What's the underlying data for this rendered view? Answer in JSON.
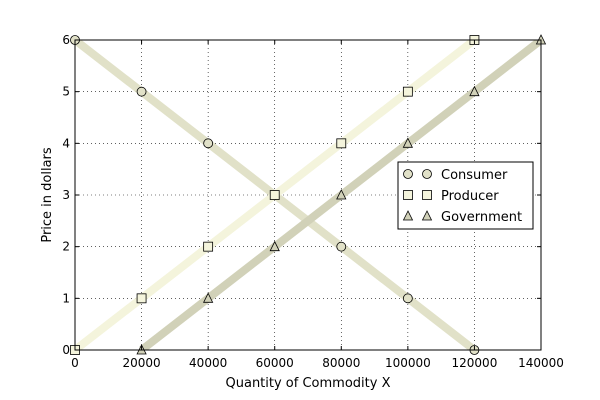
{
  "chart_data": {
    "type": "line",
    "title": "",
    "xlabel": "Quantity of Commodity X",
    "ylabel": "Price in dollars",
    "xlim": [
      0,
      140000
    ],
    "ylim": [
      0,
      6
    ],
    "xticks": [
      0,
      20000,
      40000,
      60000,
      80000,
      100000,
      120000,
      140000
    ],
    "yticks": [
      0,
      1,
      2,
      3,
      4,
      5,
      6
    ],
    "grid": true,
    "grid_style": "dotted",
    "legend_position": "center-right",
    "series": [
      {
        "name": "Consumer",
        "marker": "circle",
        "line_color": "#e1e1c8",
        "marker_fill": "#e1e1c8",
        "x": [
          0,
          20000,
          40000,
          60000,
          80000,
          100000,
          120000
        ],
        "y": [
          6,
          5,
          4,
          3,
          2,
          1,
          0
        ]
      },
      {
        "name": "Producer",
        "marker": "square",
        "line_color": "#f4f4dc",
        "marker_fill": "#f4f4dc",
        "x": [
          0,
          20000,
          40000,
          60000,
          80000,
          100000,
          120000
        ],
        "y": [
          0,
          1,
          2,
          3,
          4,
          5,
          6
        ]
      },
      {
        "name": "Government",
        "marker": "triangle",
        "line_color": "#d1d1b8",
        "marker_fill": "#d1d1b8",
        "x": [
          20000,
          40000,
          60000,
          80000,
          100000,
          120000,
          140000
        ],
        "y": [
          0,
          1,
          2,
          3,
          4,
          5,
          6
        ]
      }
    ]
  }
}
